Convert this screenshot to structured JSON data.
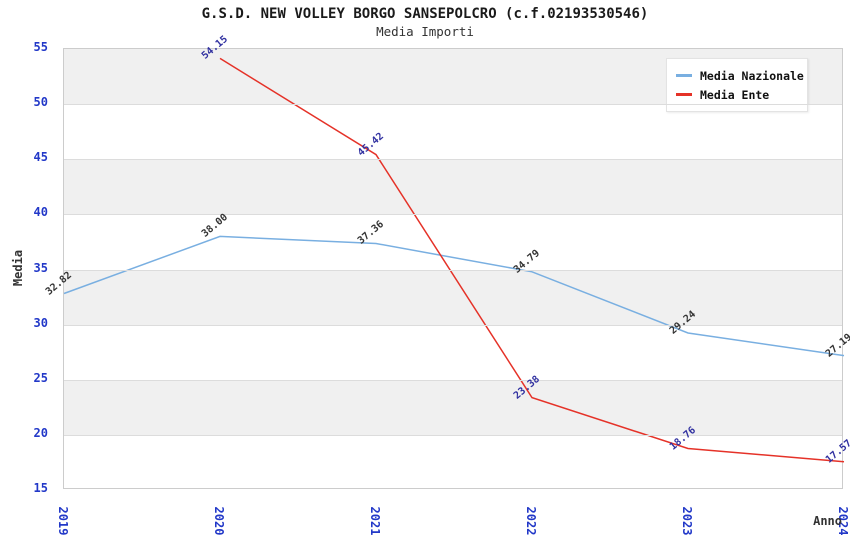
{
  "header": {
    "title": "G.S.D. NEW VOLLEY BORGO SANSEPOLCRO (c.f.02193530546)",
    "subtitle": "Media Importi"
  },
  "legend": {
    "position": "top-right",
    "items": [
      {
        "label": "Media Nazionale",
        "color": "#79afe1"
      },
      {
        "label": "Media Ente",
        "color": "#e53228"
      }
    ]
  },
  "axes": {
    "xlabel": "Anno",
    "ylabel": "Media",
    "x_tick_color": "#2238c8",
    "y_tick_color": "#2238c8"
  },
  "chart_data": {
    "type": "line",
    "x": [
      "2019",
      "2020",
      "2021",
      "2022",
      "2023",
      "2024"
    ],
    "xlabel": "Anno",
    "ylabel": "Media",
    "title": "G.S.D. NEW VOLLEY BORGO SANSEPOLCRO (c.f.02193530546)",
    "subtitle": "Media Importi",
    "ylim": [
      15,
      55
    ],
    "ytick_step": 5,
    "grid": "horizontal-bands",
    "legend_position": "top-right",
    "band_color": "#f0f0f0",
    "series": [
      {
        "name": "Media Nazionale",
        "color": "#79afe1",
        "label_color": "#333333",
        "values": [
          32.82,
          38.0,
          37.36,
          34.79,
          29.24,
          27.19
        ]
      },
      {
        "name": "Media Ente",
        "color": "#e53228",
        "label_color": "#3030a0",
        "values": [
          null,
          54.15,
          45.42,
          23.38,
          18.76,
          17.57
        ]
      }
    ]
  }
}
